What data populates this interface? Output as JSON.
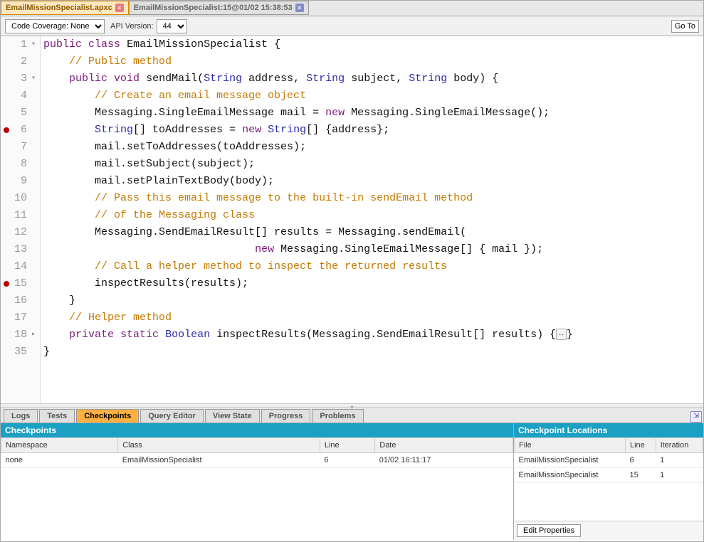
{
  "tabs": [
    {
      "label": "EmailMissionSpecialist.apxc",
      "active": true
    },
    {
      "label": "EmailMissionSpecialist:15@01/02 15:38:53",
      "active": false
    }
  ],
  "toolbar": {
    "coverage_label": "Code Coverage: None",
    "api_label": "API Version:",
    "api_value": "44",
    "goto": "Go To"
  },
  "code": {
    "lines": [
      {
        "n": "1",
        "fold": "fold"
      },
      {
        "n": "2"
      },
      {
        "n": "3",
        "fold": "fold"
      },
      {
        "n": "4"
      },
      {
        "n": "5"
      },
      {
        "n": "6",
        "bp": true
      },
      {
        "n": "7"
      },
      {
        "n": "8"
      },
      {
        "n": "9"
      },
      {
        "n": "10"
      },
      {
        "n": "11"
      },
      {
        "n": "12"
      },
      {
        "n": "13"
      },
      {
        "n": "14"
      },
      {
        "n": "15",
        "bp": true
      },
      {
        "n": "16"
      },
      {
        "n": "17"
      },
      {
        "n": "18",
        "fold": "foldr"
      },
      {
        "n": "35"
      }
    ]
  },
  "bottomTabs": [
    "Logs",
    "Tests",
    "Checkpoints",
    "Query Editor",
    "View State",
    "Progress",
    "Problems"
  ],
  "bottomActive": "Checkpoints",
  "leftPanel": {
    "title": "Checkpoints",
    "cols": [
      "Namespace",
      "Class",
      "Line",
      "Date"
    ],
    "rows": [
      [
        "none",
        "EmailMissionSpecialist",
        "6",
        "01/02 16:11:17"
      ]
    ]
  },
  "rightPanel": {
    "title": "Checkpoint Locations",
    "cols": [
      "File",
      "Line",
      "Iteration"
    ],
    "rows": [
      [
        "EmailMissionSpecialist",
        "6",
        "1"
      ],
      [
        "EmailMissionSpecialist",
        "15",
        "1"
      ]
    ],
    "button": "Edit Properties"
  },
  "colors": {
    "accent": "#1ba0c4",
    "activeTab": "#ffb040"
  }
}
